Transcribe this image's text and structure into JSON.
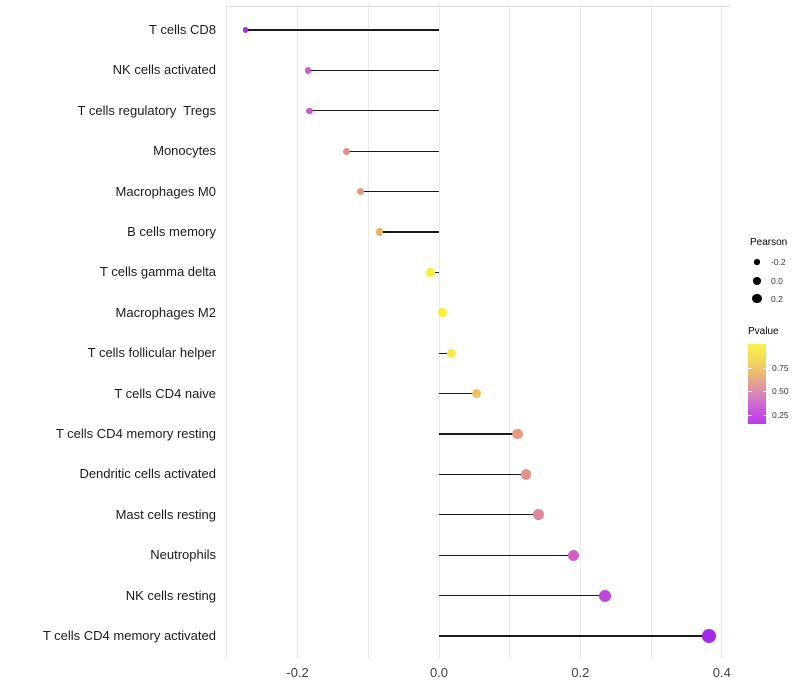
{
  "chart_data": {
    "type": "lollipop",
    "orientation": "horizontal",
    "grid": "vertical-only",
    "background": "#ffffff",
    "x_axis": {
      "tick_labels": [
        "-0.2",
        "0.0",
        "0.2",
        "0.4"
      ],
      "tick_values": [
        -0.2,
        0.0,
        0.2,
        0.4
      ],
      "gridline_values": [
        -0.3,
        -0.2,
        -0.1,
        0.0,
        0.1,
        0.2,
        0.3,
        0.4
      ],
      "range": [
        -0.31,
        0.42
      ],
      "baseline_value": 0.0
    },
    "rows": [
      {
        "category": "T cells CD8",
        "pearson": -0.274,
        "pvalue": 0.1,
        "color": "#9b30dd"
      },
      {
        "category": "NK cells activated",
        "pearson": -0.185,
        "pvalue": 0.27,
        "color": "#c75fc4"
      },
      {
        "category": "T cells regulatory  Tregs",
        "pearson": -0.183,
        "pvalue": 0.27,
        "color": "#c55cc2"
      },
      {
        "category": "Monocytes",
        "pearson": -0.131,
        "pvalue": 0.45,
        "color": "#dd8f92"
      },
      {
        "category": "Macrophages M0",
        "pearson": -0.111,
        "pvalue": 0.52,
        "color": "#e19a80"
      },
      {
        "category": "B cells memory",
        "pearson": -0.084,
        "pvalue": 0.64,
        "color": "#edb166"
      },
      {
        "category": "T cells gamma delta",
        "pearson": -0.012,
        "pvalue": 0.93,
        "color": "#f8ef3d"
      },
      {
        "category": "Macrophages M2",
        "pearson": 0.005,
        "pvalue": 0.95,
        "color": "#f9ee36"
      },
      {
        "category": "T cells follicular helper",
        "pearson": 0.018,
        "pvalue": 0.9,
        "color": "#f7ea46"
      },
      {
        "category": "T cells CD4 naive",
        "pearson": 0.053,
        "pvalue": 0.73,
        "color": "#eec25e"
      },
      {
        "category": "T cells CD4 memory resting",
        "pearson": 0.111,
        "pvalue": 0.52,
        "color": "#e89a7c"
      },
      {
        "category": "Dendritic cells activated",
        "pearson": 0.123,
        "pvalue": 0.48,
        "color": "#e4938c"
      },
      {
        "category": "Mast cells resting",
        "pearson": 0.141,
        "pvalue": 0.42,
        "color": "#e2859e"
      },
      {
        "category": "Neutrophils",
        "pearson": 0.19,
        "pvalue": 0.26,
        "color": "#d05fc6"
      },
      {
        "category": "NK cells resting",
        "pearson": 0.235,
        "pvalue": 0.18,
        "color": "#bc49da"
      },
      {
        "category": "T cells CD4 memory activated",
        "pearson": 0.382,
        "pvalue": 0.04,
        "color": "#a22ce6"
      }
    ]
  },
  "legend": {
    "pearson": {
      "title": "Pearson",
      "dot_color": "#000000",
      "items": [
        {
          "label": "-0.2",
          "value": -0.2
        },
        {
          "label": "0.0",
          "value": 0.0
        },
        {
          "label": "0.2",
          "value": 0.2
        }
      ]
    },
    "pvalue": {
      "title": "Pvalue",
      "tick_labels": [
        "0.75",
        "0.50",
        "0.25"
      ],
      "tick_values": [
        0.75,
        0.5,
        0.25
      ],
      "range_bottom": 0.15,
      "range_top": 1.0,
      "gradient_colors_top_to_bottom": [
        "#f9f04e",
        "#f5df55",
        "#eec06c",
        "#e19e97",
        "#d57cc0",
        "#c657dd",
        "#bd3bee"
      ]
    }
  },
  "colors": {
    "segment": "#1a1a1a",
    "gridline": "#e9e9e9",
    "panel_top_line": "#dedede",
    "category_text": "#1a1a1a",
    "tick_text": "#404040"
  }
}
